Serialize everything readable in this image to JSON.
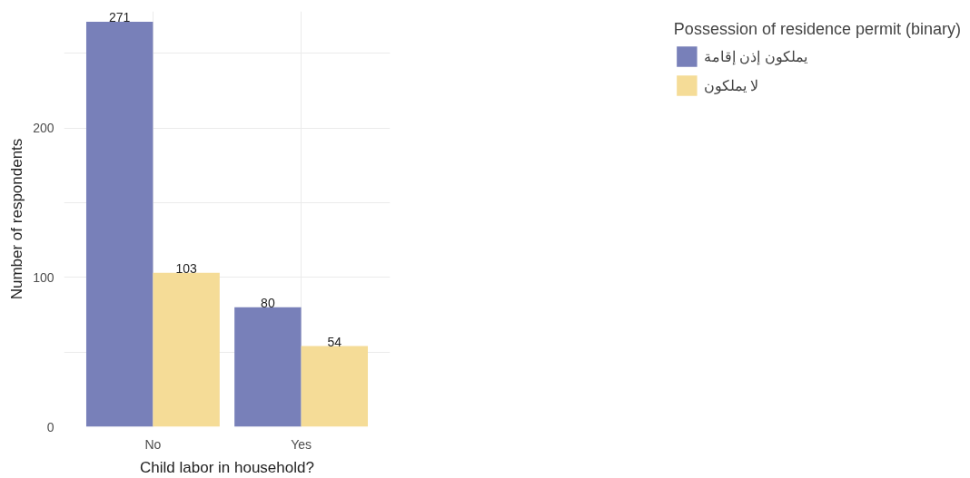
{
  "chart_data": {
    "type": "bar",
    "xlabel": "Child labor in household?",
    "ylabel": "Number of respondents",
    "legend_title": "Possession of residence permit (binary)",
    "categories": [
      "No",
      "Yes"
    ],
    "series": [
      {
        "name": "يملكون إذن إقامة",
        "color": "#7880b9",
        "values": [
          271,
          80
        ]
      },
      {
        "name": "لا يملكون",
        "color": "#f5dc97",
        "values": [
          103,
          54
        ]
      }
    ],
    "ylim": [
      0,
      278
    ],
    "yticks": [
      0,
      {
        "value": 50,
        "label": null
      },
      100,
      {
        "value": 150,
        "label": null
      },
      200,
      {
        "value": 250,
        "label": null
      }
    ],
    "grid": true,
    "legend": "right",
    "data_labels": true
  }
}
